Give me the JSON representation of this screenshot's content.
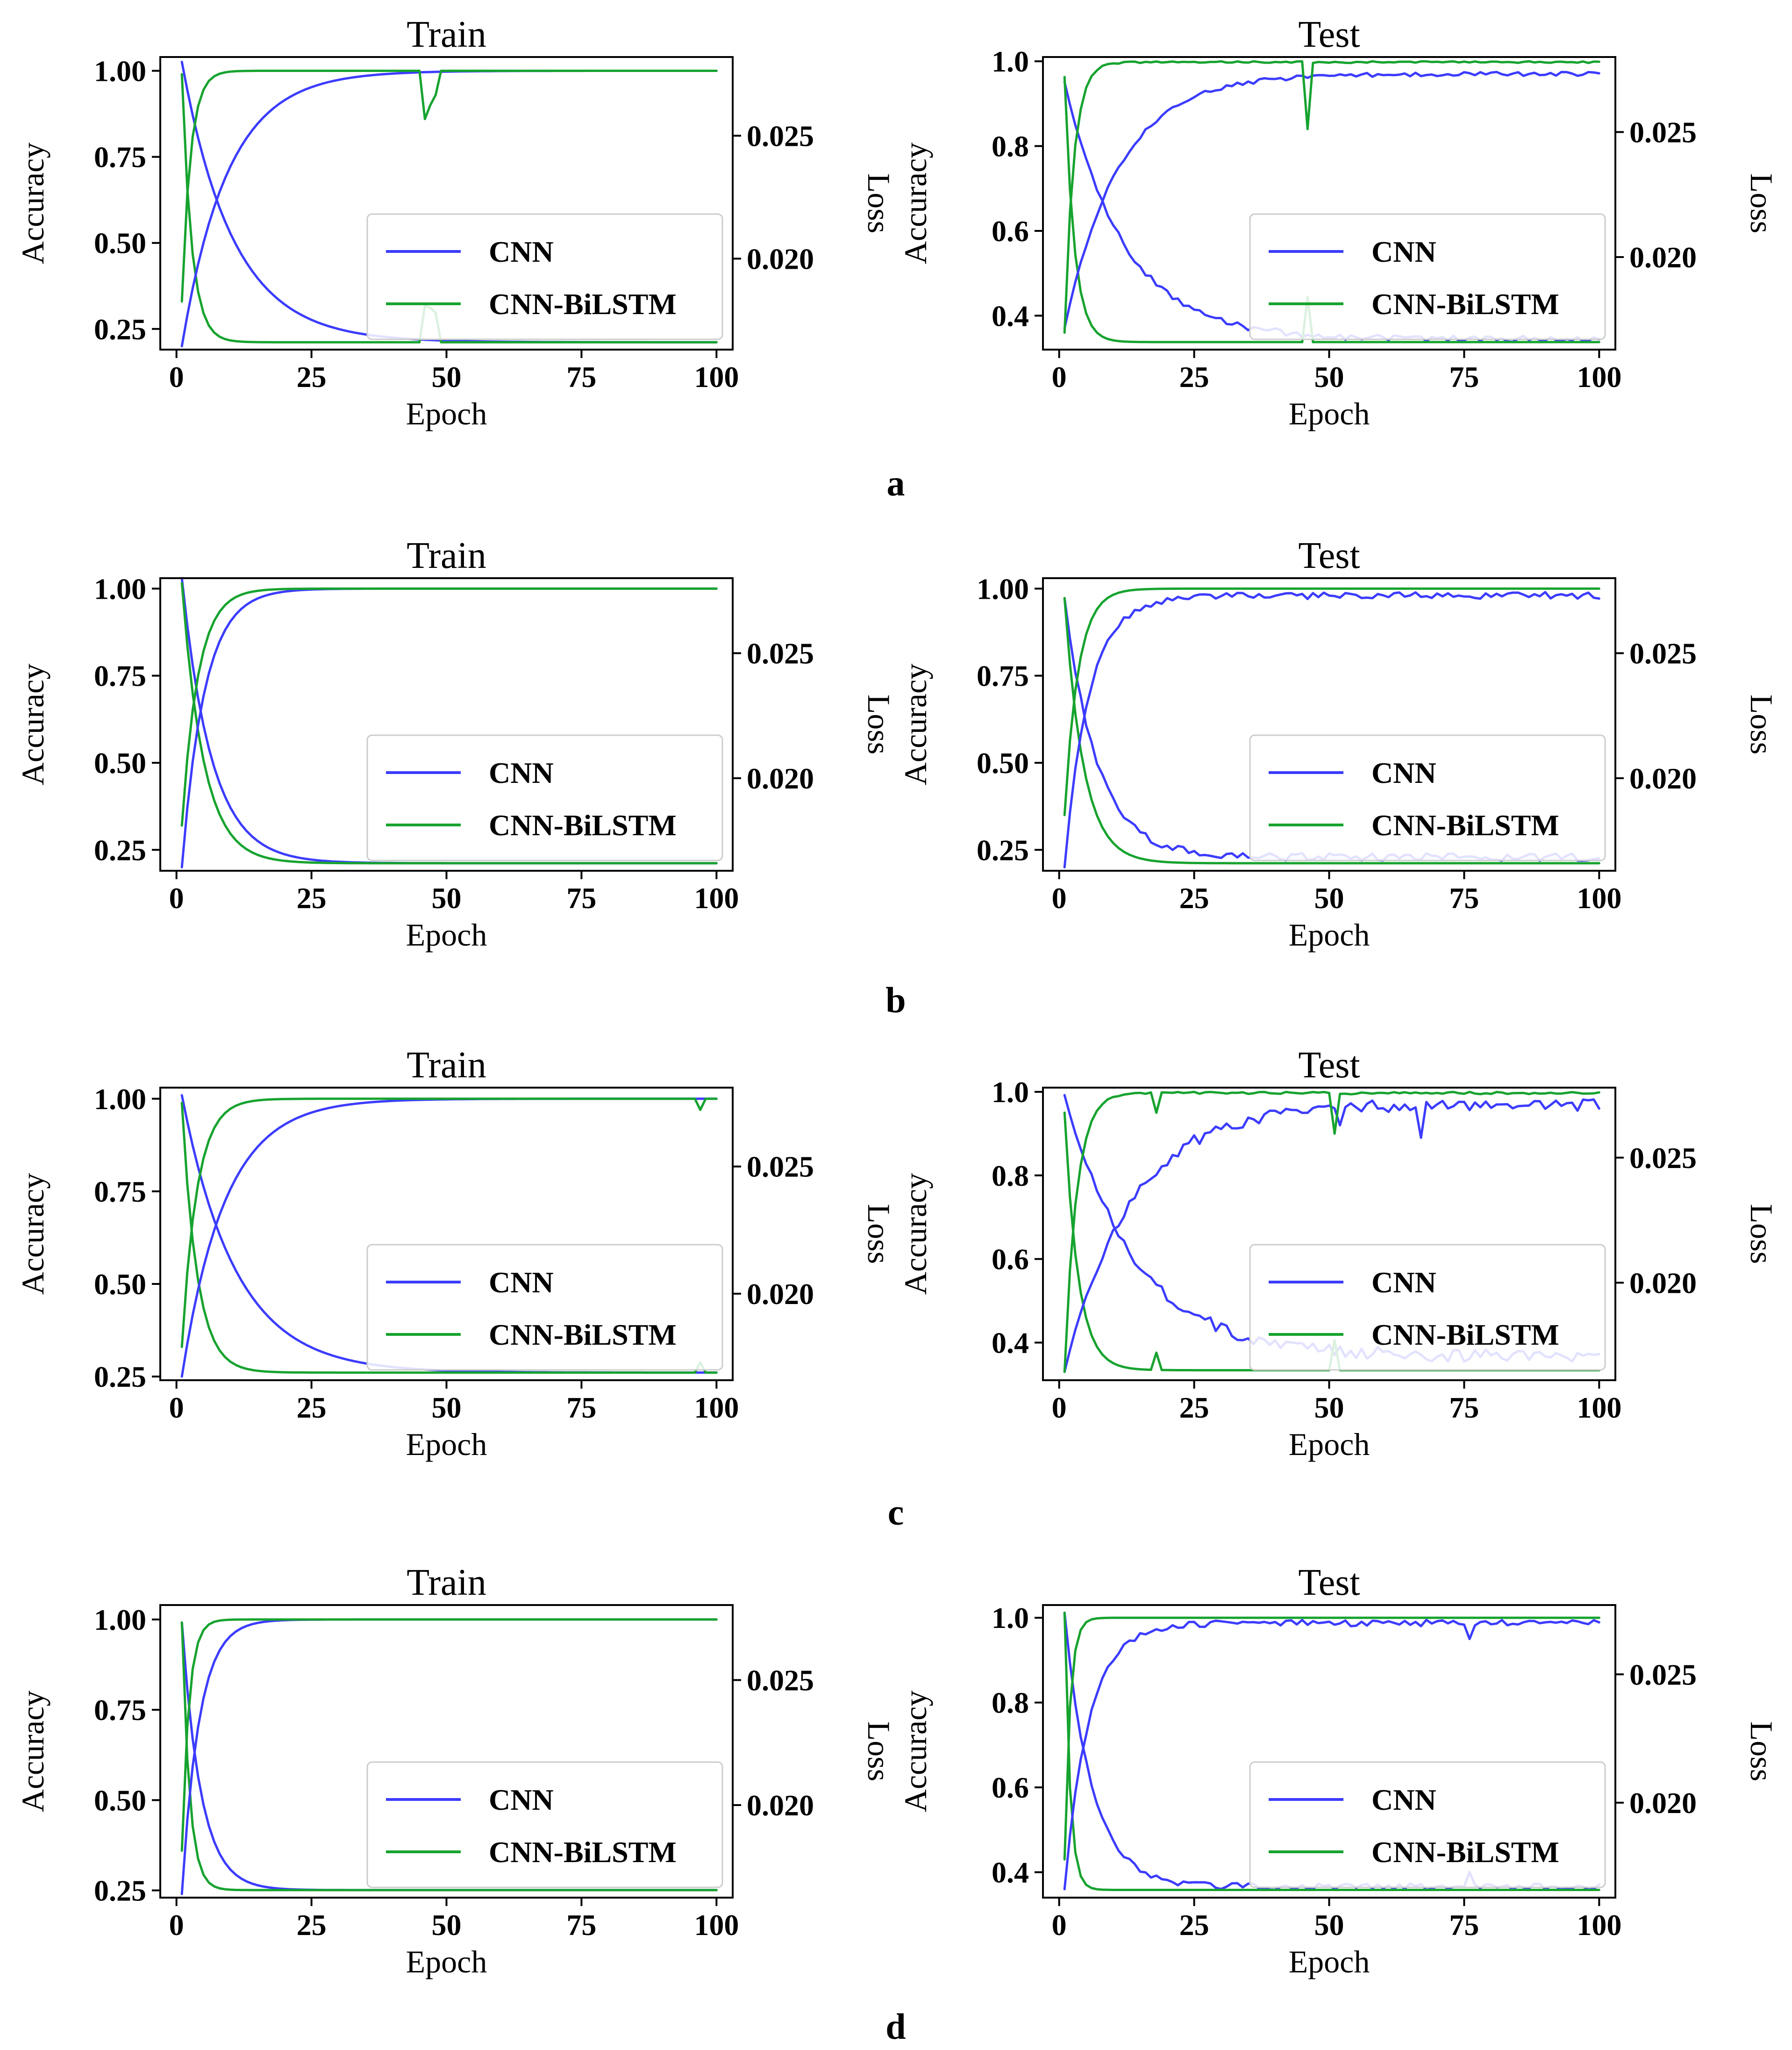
{
  "colors": {
    "cnn": "#3c3cff",
    "cnn_bilstm": "#17a32f"
  },
  "chart_data": [
    {
      "type": "line",
      "panel": "a",
      "title": "Train",
      "show_panel_letter": false,
      "xlabel": "Epoch",
      "ylabel": "Accuracy",
      "y2label": "Loss",
      "xlim": [
        -3,
        103
      ],
      "ylim": [
        0.19,
        1.04
      ],
      "y2lim": [
        0.0163,
        0.0282
      ],
      "xticks": [
        0,
        25,
        50,
        75,
        100
      ],
      "yticks": [
        0.25,
        0.5,
        0.75,
        1.0
      ],
      "ytick_labels": [
        "0.25",
        "0.50",
        "0.75",
        "1.00"
      ],
      "y2ticks": [
        0.02,
        0.025
      ],
      "y2tick_labels": [
        "0.020",
        "0.025"
      ],
      "legend": [
        "CNN",
        "CNN-BiLSTM"
      ],
      "legend_position": "lower-right",
      "cnn_acc": {
        "start": 0.2,
        "end": 1.0,
        "tau": 8.5
      },
      "bilstm_acc": {
        "start": 0.33,
        "end": 1.0,
        "tau": 1.6,
        "spikes": [
          [
            46,
            0.86
          ],
          [
            47,
            0.9
          ],
          [
            48,
            0.93
          ]
        ]
      },
      "cnn_loss": {
        "start": 0.028,
        "end": 0.0166,
        "tau": 9.5
      },
      "bilstm_loss": {
        "start": 0.0275,
        "end": 0.0166,
        "tau": 1.8,
        "spikes": [
          [
            46,
            0.0181
          ],
          [
            47,
            0.018
          ],
          [
            48,
            0.0178
          ]
        ]
      }
    },
    {
      "type": "line",
      "panel": "a",
      "title": "Test",
      "show_panel_letter": true,
      "xlabel": "Epoch",
      "ylabel": "Accuracy",
      "y2label": "Loss",
      "xlim": [
        -3,
        103
      ],
      "ylim": [
        0.32,
        1.01
      ],
      "y2lim": [
        0.0163,
        0.028
      ],
      "xticks": [
        0,
        25,
        50,
        75,
        100
      ],
      "yticks": [
        0.4,
        0.6,
        0.8,
        1.0
      ],
      "ytick_labels": [
        "0.4",
        "0.6",
        "0.8",
        "1.0"
      ],
      "y2ticks": [
        0.02,
        0.025
      ],
      "y2tick_labels": [
        "0.020",
        "0.025"
      ],
      "legend": [
        "CNN",
        "CNN-BiLSTM"
      ],
      "legend_position": "lower-right",
      "cnn_acc": {
        "start": 0.37,
        "end": 0.975,
        "tau": 10,
        "noise": 0.01
      },
      "bilstm_acc": {
        "start": 0.36,
        "end": 1.0,
        "tau": 1.7,
        "noise": 0.004,
        "spikes": [
          [
            46,
            0.84
          ]
        ]
      },
      "cnn_loss": {
        "start": 0.027,
        "end": 0.0166,
        "tau": 11,
        "noise": 0.00025
      },
      "bilstm_loss": {
        "start": 0.0272,
        "end": 0.0166,
        "tau": 1.8,
        "spikes": [
          [
            46,
            0.0184
          ]
        ]
      }
    },
    {
      "type": "line",
      "panel": "b",
      "title": "Train",
      "show_panel_letter": false,
      "xlabel": "Epoch",
      "ylabel": "Accuracy",
      "y2label": "Loss",
      "xlim": [
        -3,
        103
      ],
      "ylim": [
        0.19,
        1.03
      ],
      "y2lim": [
        0.0163,
        0.028
      ],
      "xticks": [
        0,
        25,
        50,
        75,
        100
      ],
      "yticks": [
        0.25,
        0.5,
        0.75,
        1.0
      ],
      "ytick_labels": [
        "0.25",
        "0.50",
        "0.75",
        "1.00"
      ],
      "y2ticks": [
        0.02,
        0.025
      ],
      "y2tick_labels": [
        "0.020",
        "0.025"
      ],
      "legend": [
        "CNN",
        "CNN-BiLSTM"
      ],
      "legend_position": "lower-right",
      "cnn_acc": {
        "start": 0.2,
        "end": 1.0,
        "tau": 4.2
      },
      "bilstm_acc": {
        "start": 0.32,
        "end": 1.0,
        "tau": 3.0
      },
      "cnn_loss": {
        "start": 0.028,
        "end": 0.0166,
        "tau": 5.5
      },
      "bilstm_loss": {
        "start": 0.0278,
        "end": 0.0166,
        "tau": 4.0
      }
    },
    {
      "type": "line",
      "panel": "b",
      "title": "Test",
      "show_panel_letter": true,
      "xlabel": "Epoch",
      "ylabel": "Accuracy",
      "y2label": "Loss",
      "xlim": [
        -3,
        103
      ],
      "ylim": [
        0.19,
        1.03
      ],
      "y2lim": [
        0.0163,
        0.028
      ],
      "xticks": [
        0,
        25,
        50,
        75,
        100
      ],
      "yticks": [
        0.25,
        0.5,
        0.75,
        1.0
      ],
      "ytick_labels": [
        "0.25",
        "0.50",
        "0.75",
        "1.00"
      ],
      "y2ticks": [
        0.02,
        0.025
      ],
      "y2tick_labels": [
        "0.020",
        "0.025"
      ],
      "legend": [
        "CNN",
        "CNN-BiLSTM"
      ],
      "legend_position": "lower-right",
      "cnn_acc": {
        "start": 0.2,
        "end": 0.99,
        "tau": 4.5,
        "noise": 0.02
      },
      "bilstm_acc": {
        "start": 0.35,
        "end": 1.0,
        "tau": 2.5
      },
      "cnn_loss": {
        "start": 0.0272,
        "end": 0.0167,
        "tau": 6,
        "noise": 0.0003
      },
      "bilstm_loss": {
        "start": 0.0272,
        "end": 0.0166,
        "tau": 3.5
      }
    },
    {
      "type": "line",
      "panel": "c",
      "title": "Train",
      "show_panel_letter": false,
      "xlabel": "Epoch",
      "ylabel": "Accuracy",
      "y2label": "Loss",
      "xlim": [
        -3,
        103
      ],
      "ylim": [
        0.24,
        1.03
      ],
      "y2lim": [
        0.0166,
        0.0281
      ],
      "xticks": [
        0,
        25,
        50,
        75,
        100
      ],
      "yticks": [
        0.25,
        0.5,
        0.75,
        1.0
      ],
      "ytick_labels": [
        "0.25",
        "0.50",
        "0.75",
        "1.00"
      ],
      "y2ticks": [
        0.02,
        0.025
      ],
      "y2tick_labels": [
        "0.020",
        "0.025"
      ],
      "legend": [
        "CNN",
        "CNN-BiLSTM"
      ],
      "legend_position": "lower-right",
      "cnn_acc": {
        "start": 0.25,
        "end": 1.0,
        "tau": 8.0
      },
      "bilstm_acc": {
        "start": 0.33,
        "end": 1.0,
        "tau": 2.8,
        "spikes": [
          [
            97,
            0.97
          ]
        ]
      },
      "cnn_loss": {
        "start": 0.0278,
        "end": 0.0169,
        "tau": 10
      },
      "bilstm_loss": {
        "start": 0.0275,
        "end": 0.0169,
        "tau": 2.8,
        "spikes": [
          [
            97,
            0.0173
          ]
        ]
      }
    },
    {
      "type": "line",
      "panel": "c",
      "title": "Test",
      "show_panel_letter": true,
      "xlabel": "Epoch",
      "ylabel": "Accuracy",
      "y2label": "Loss",
      "xlim": [
        -3,
        103
      ],
      "ylim": [
        0.31,
        1.01
      ],
      "y2lim": [
        0.0161,
        0.0278
      ],
      "xticks": [
        0,
        25,
        50,
        75,
        100
      ],
      "yticks": [
        0.4,
        0.6,
        0.8,
        1.0
      ],
      "ytick_labels": [
        "0.4",
        "0.6",
        "0.8",
        "1.0"
      ],
      "y2ticks": [
        0.02,
        0.025
      ],
      "y2tick_labels": [
        "0.020",
        "0.025"
      ],
      "legend": [
        "CNN",
        "CNN-BiLSTM"
      ],
      "legend_position": "lower-right",
      "cnn_acc": {
        "start": 0.33,
        "end": 0.985,
        "tau": 12,
        "noise": 0.03,
        "spikes": [
          [
            67,
            0.89
          ],
          [
            52,
            0.92
          ]
        ]
      },
      "bilstm_acc": {
        "start": 0.33,
        "end": 1.0,
        "tau": 2.2,
        "noise": 0.006,
        "spikes": [
          [
            18,
            0.95
          ],
          [
            51,
            0.9
          ]
        ]
      },
      "cnn_loss": {
        "start": 0.0275,
        "end": 0.0168,
        "tau": 13,
        "noise": 0.0005
      },
      "bilstm_loss": {
        "start": 0.0268,
        "end": 0.0165,
        "tau": 2.5,
        "spikes": [
          [
            18,
            0.0172
          ],
          [
            51,
            0.0177
          ]
        ]
      }
    },
    {
      "type": "line",
      "panel": "d",
      "title": "Train",
      "show_panel_letter": false,
      "xlabel": "Epoch",
      "ylabel": "Accuracy",
      "y2label": "Loss",
      "xlim": [
        -3,
        103
      ],
      "ylim": [
        0.23,
        1.04
      ],
      "y2lim": [
        0.0163,
        0.028
      ],
      "xticks": [
        0,
        25,
        50,
        75,
        100
      ],
      "yticks": [
        0.25,
        0.5,
        0.75,
        1.0
      ],
      "ytick_labels": [
        "0.25",
        "0.50",
        "0.75",
        "1.00"
      ],
      "y2ticks": [
        0.02,
        0.025
      ],
      "y2tick_labels": [
        "0.020",
        "0.025"
      ],
      "legend": [
        "CNN",
        "CNN-BiLSTM"
      ],
      "legend_position": "lower-right",
      "cnn_acc": {
        "start": 0.24,
        "end": 1.0,
        "tau": 3.2
      },
      "bilstm_acc": {
        "start": 0.36,
        "end": 1.0,
        "tau": 1.3
      },
      "cnn_loss": {
        "start": 0.0273,
        "end": 0.0166,
        "tau": 3.5
      },
      "bilstm_loss": {
        "start": 0.0273,
        "end": 0.0166,
        "tau": 1.4
      }
    },
    {
      "type": "line",
      "panel": "d",
      "title": "Test",
      "show_panel_letter": true,
      "xlabel": "Epoch",
      "ylabel": "Accuracy",
      "y2label": "Loss",
      "xlim": [
        -3,
        103
      ],
      "ylim": [
        0.34,
        1.03
      ],
      "y2lim": [
        0.0163,
        0.0277
      ],
      "xticks": [
        0,
        25,
        50,
        75,
        100
      ],
      "yticks": [
        0.4,
        0.6,
        0.8,
        1.0
      ],
      "ytick_labels": [
        "0.4",
        "0.6",
        "0.8",
        "1.0"
      ],
      "y2ticks": [
        0.02,
        0.025
      ],
      "y2tick_labels": [
        "0.020",
        "0.025"
      ],
      "legend": [
        "CNN",
        "CNN-BiLSTM"
      ],
      "legend_position": "lower-right",
      "cnn_acc": {
        "start": 0.36,
        "end": 0.995,
        "tau": 4.5,
        "noise": 0.015,
        "spikes": [
          [
            76,
            0.95
          ]
        ]
      },
      "bilstm_acc": {
        "start": 0.43,
        "end": 1.0,
        "tau": 1.0
      },
      "cnn_loss": {
        "start": 0.0274,
        "end": 0.0166,
        "tau": 5,
        "noise": 0.00025,
        "spikes": [
          [
            76,
            0.0173
          ]
        ]
      },
      "bilstm_loss": {
        "start": 0.0274,
        "end": 0.0166,
        "tau": 1.0
      }
    }
  ]
}
